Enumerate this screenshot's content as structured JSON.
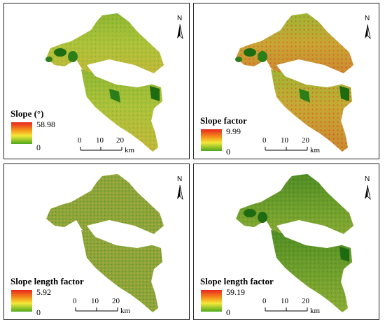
{
  "panels": [
    {
      "id": "a",
      "title": "Slope (°)",
      "max": "58.98",
      "min": "0",
      "style": "mixed"
    },
    {
      "id": "b",
      "title": "Slope factor",
      "max": "9.99",
      "min": "0",
      "style": "red"
    },
    {
      "id": "c",
      "title": "Slope length factor",
      "max": "5.92",
      "min": "0",
      "style": "olive"
    },
    {
      "id": "d",
      "title": "Slope length factor",
      "max": "59.19",
      "min": "0",
      "style": "green"
    }
  ],
  "scale_bar": {
    "ticks": [
      "0",
      "10",
      "20"
    ],
    "unit": "km"
  },
  "north_arrow": {
    "label": "N"
  },
  "colors": {
    "high": "#e8261e",
    "mid": "#f2e93a",
    "low": "#4ea81c",
    "dark": "#1e6b12"
  }
}
